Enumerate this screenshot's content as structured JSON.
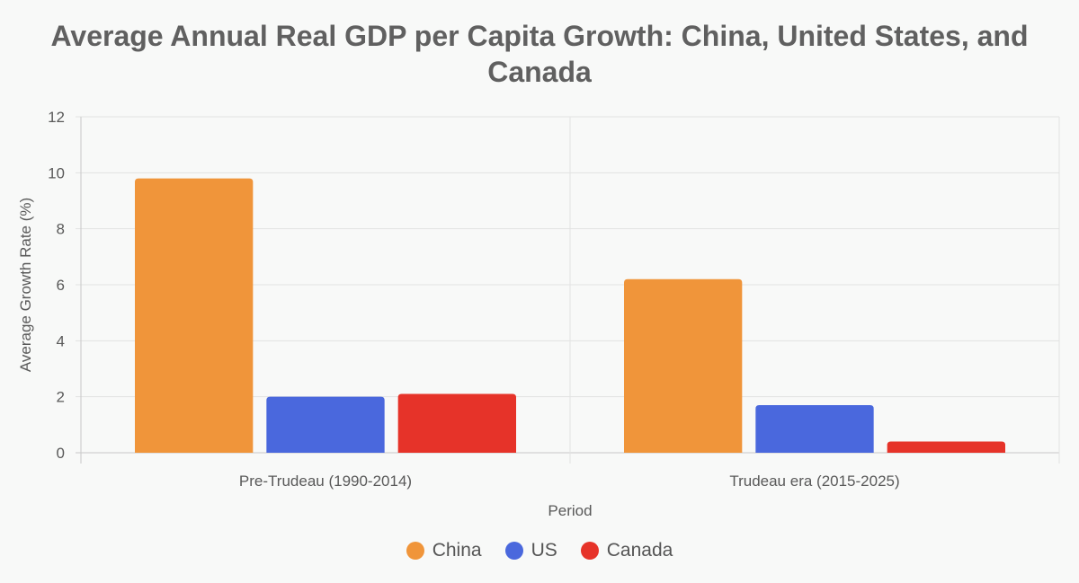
{
  "chart_data": {
    "type": "bar",
    "title": "Average Annual Real GDP per Capita Growth: China, United States, and Canada",
    "xlabel": "Period",
    "ylabel": "Average Growth Rate (%)",
    "categories": [
      "Pre-Trudeau (1990-2014)",
      "Trudeau era (2015-2025)"
    ],
    "series": [
      {
        "name": "China",
        "color": "#f0953a",
        "values": [
          9.8,
          6.2
        ]
      },
      {
        "name": "US",
        "color": "#4a68dd",
        "values": [
          2.0,
          1.7
        ]
      },
      {
        "name": "Canada",
        "color": "#e63329",
        "values": [
          2.1,
          0.4
        ]
      }
    ],
    "ylim": [
      0,
      12
    ],
    "yticks": [
      "0",
      "2",
      "4",
      "6",
      "8",
      "10",
      "12"
    ],
    "grid": true,
    "legend_position": "bottom"
  }
}
